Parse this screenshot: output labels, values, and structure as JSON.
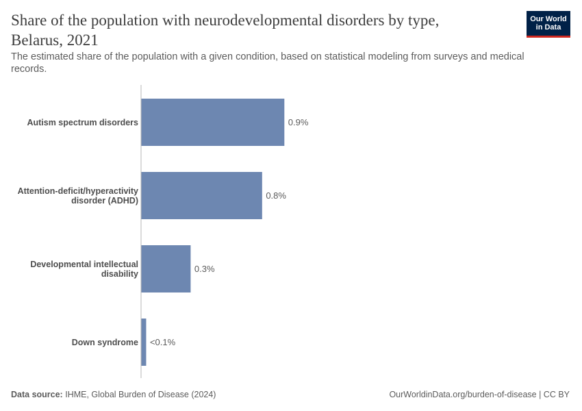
{
  "header": {
    "title": "Share of the population with neurodevelopmental disorders by type, Belarus, 2021",
    "subtitle": "The estimated share of the population with a given condition, based on statistical modeling from surveys and medical records."
  },
  "logo": {
    "line1": "Our World",
    "line2": "in Data",
    "bg_color": "#002147",
    "accent_color": "#ce261e"
  },
  "footer": {
    "source_label": "Data source:",
    "source_text": "IHME, Global Burden of Disease (2024)",
    "url_text": "OurWorldinData.org/burden-of-disease | CC BY"
  },
  "chart_data": {
    "type": "bar",
    "orientation": "horizontal",
    "categories": [
      [
        "Autism spectrum disorders"
      ],
      [
        "Attention-deficit/hyperactivity",
        "disorder (ADHD)"
      ],
      [
        "Developmental intellectual",
        "disability"
      ],
      [
        "Down syndrome"
      ]
    ],
    "values": [
      0.9,
      0.76,
      0.31,
      0.03
    ],
    "value_labels": [
      "0.9%",
      "0.8%",
      "0.3%",
      "<0.1%"
    ],
    "unit": "%",
    "xlim": [
      0,
      1.0
    ],
    "bar_color": "#6d87b1",
    "grid": false
  }
}
